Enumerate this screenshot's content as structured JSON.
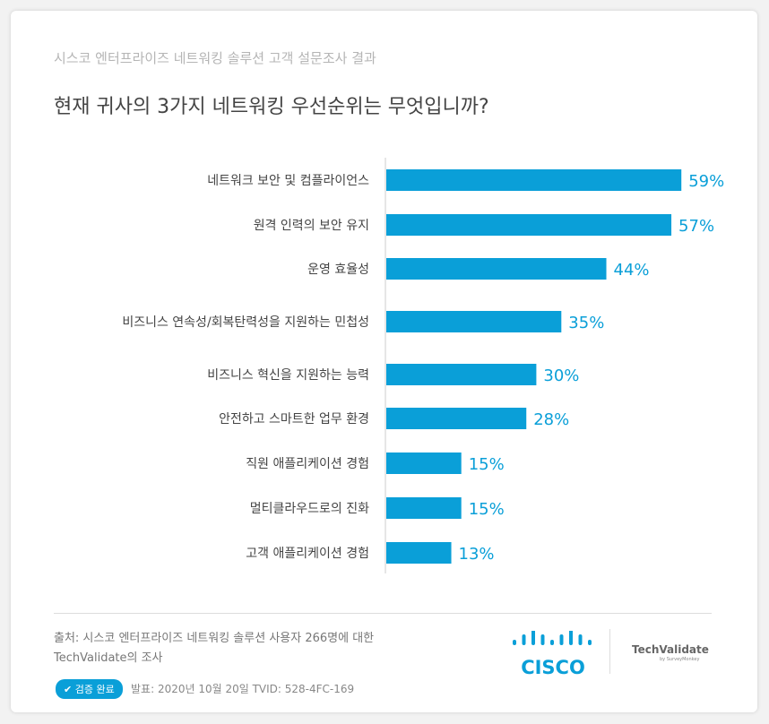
{
  "header": {
    "subtitle": "시스코 엔터프라이즈 네트워킹 솔루션 고객 설문조사 결과"
  },
  "chart_data": {
    "type": "bar",
    "orientation": "horizontal",
    "title": "현재 귀사의 3가지 네트워킹 우선순위는 무엇입니까?",
    "categories": [
      "네트워크 보안 및 컴플라이언스",
      "원격 인력의 보안 유지",
      "운영 효율성",
      "비즈니스 연속성/회복탄력성을 지원하는 민첩성",
      "비즈니스 혁신을 지원하는 능력",
      "안전하고 스마트한 업무 환경",
      "직원 애플리케이션 경험",
      "멀티클라우드로의 진화",
      "고객 애플리케이션 경험"
    ],
    "values": [
      59,
      57,
      44,
      35,
      30,
      28,
      15,
      15,
      13
    ],
    "labels": [
      "59%",
      "57%",
      "44%",
      "35%",
      "30%",
      "28%",
      "15%",
      "15%",
      "13%"
    ],
    "color": "#0a9fd8",
    "xlim": [
      0,
      100
    ]
  },
  "footer": {
    "source_line1": "출처: 시스코 엔터프라이즈 네트워킹 솔루션 사용자 266명에 대한",
    "source_line2": "TechValidate의 조사",
    "badge": "✔ 검증 완료",
    "meta": "발표: 2020년 10월 20일  TVID: 528-4FC-169",
    "cisco": "CISCO",
    "tv": "TechValidate",
    "tv_sub": "by SurveyMonkey"
  }
}
